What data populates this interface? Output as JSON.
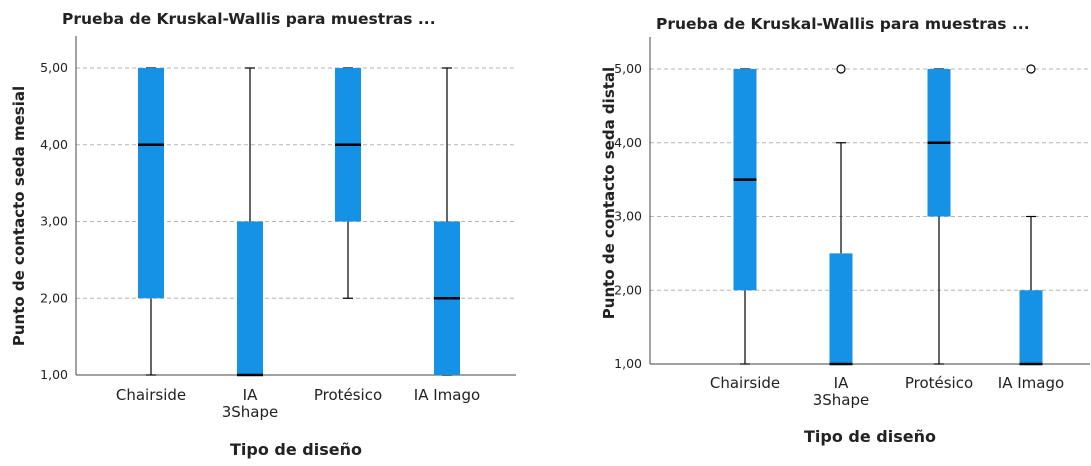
{
  "colors": {
    "box": "#1592e6",
    "median": "#000000",
    "grid": "#b5b5b5",
    "axis": "#444444"
  },
  "chart_data": [
    {
      "type": "box",
      "title": "Prueba de Kruskal-Wallis para muestras ...",
      "xlabel": "Tipo de diseño",
      "ylabel": "Punto de contacto seda mesial",
      "ylim": [
        1,
        5
      ],
      "yticks": [
        "1,00",
        "2,00",
        "3,00",
        "4,00",
        "5,00"
      ],
      "grid": true,
      "categories": [
        {
          "label": [
            "Chairside"
          ],
          "min": 1,
          "q1": 2,
          "median": 4,
          "q3": 5,
          "max": 5,
          "outliers": []
        },
        {
          "label": [
            "IA",
            "3Shape"
          ],
          "min": 1,
          "q1": 1,
          "median": 1,
          "q3": 3,
          "max": 5,
          "outliers": []
        },
        {
          "label": [
            "Protésico"
          ],
          "min": 2,
          "q1": 3,
          "median": 4,
          "q3": 5,
          "max": 5,
          "outliers": []
        },
        {
          "label": [
            "IA Imago"
          ],
          "min": 1,
          "q1": 1,
          "median": 2,
          "q3": 3,
          "max": 5,
          "outliers": []
        }
      ]
    },
    {
      "type": "box",
      "title": "Prueba de Kruskal-Wallis para muestras ...",
      "xlabel": "Tipo de diseño",
      "ylabel": "Punto de contacto seda distal",
      "ylim": [
        1,
        5
      ],
      "yticks": [
        "1,00",
        "2,00",
        "3,00",
        "4,00",
        "5,00"
      ],
      "grid": true,
      "categories": [
        {
          "label": [
            "Chairside"
          ],
          "min": 1,
          "q1": 2,
          "median": 3.5,
          "q3": 5,
          "max": 5,
          "outliers": []
        },
        {
          "label": [
            "IA",
            "3Shape"
          ],
          "min": 1,
          "q1": 1,
          "median": 1,
          "q3": 2.5,
          "max": 4,
          "outliers": [
            5
          ]
        },
        {
          "label": [
            "Protésico"
          ],
          "min": 1,
          "q1": 3,
          "median": 4,
          "q3": 5,
          "max": 5,
          "outliers": []
        },
        {
          "label": [
            "IA Imago"
          ],
          "min": 1,
          "q1": 1,
          "median": 1,
          "q3": 2,
          "max": 3,
          "outliers": [
            5
          ]
        }
      ]
    }
  ]
}
